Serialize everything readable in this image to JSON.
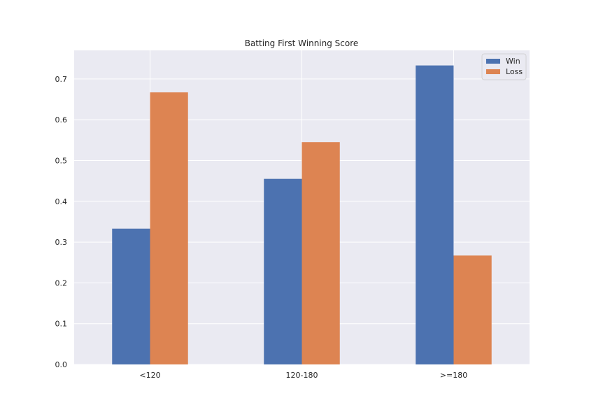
{
  "chart_data": {
    "type": "bar",
    "title": "Batting First Winning Score",
    "xlabel": "",
    "ylabel": "",
    "categories": [
      "<120",
      "120-180",
      ">=180"
    ],
    "series": [
      {
        "name": "Win",
        "color": "#4c72b0",
        "values": [
          0.333,
          0.455,
          0.733
        ]
      },
      {
        "name": "Loss",
        "color": "#dd8452",
        "values": [
          0.667,
          0.545,
          0.267
        ]
      }
    ],
    "ylim": [
      0,
      0.77
    ],
    "yticks": [
      0.0,
      0.1,
      0.2,
      0.3,
      0.4,
      0.5,
      0.6,
      0.7
    ],
    "ytick_labels": [
      "0.0",
      "0.1",
      "0.2",
      "0.3",
      "0.4",
      "0.5",
      "0.6",
      "0.7"
    ],
    "grid": true,
    "legend_position": "top-right",
    "background": "#eaeaf2",
    "grid_color": "#ffffff"
  }
}
